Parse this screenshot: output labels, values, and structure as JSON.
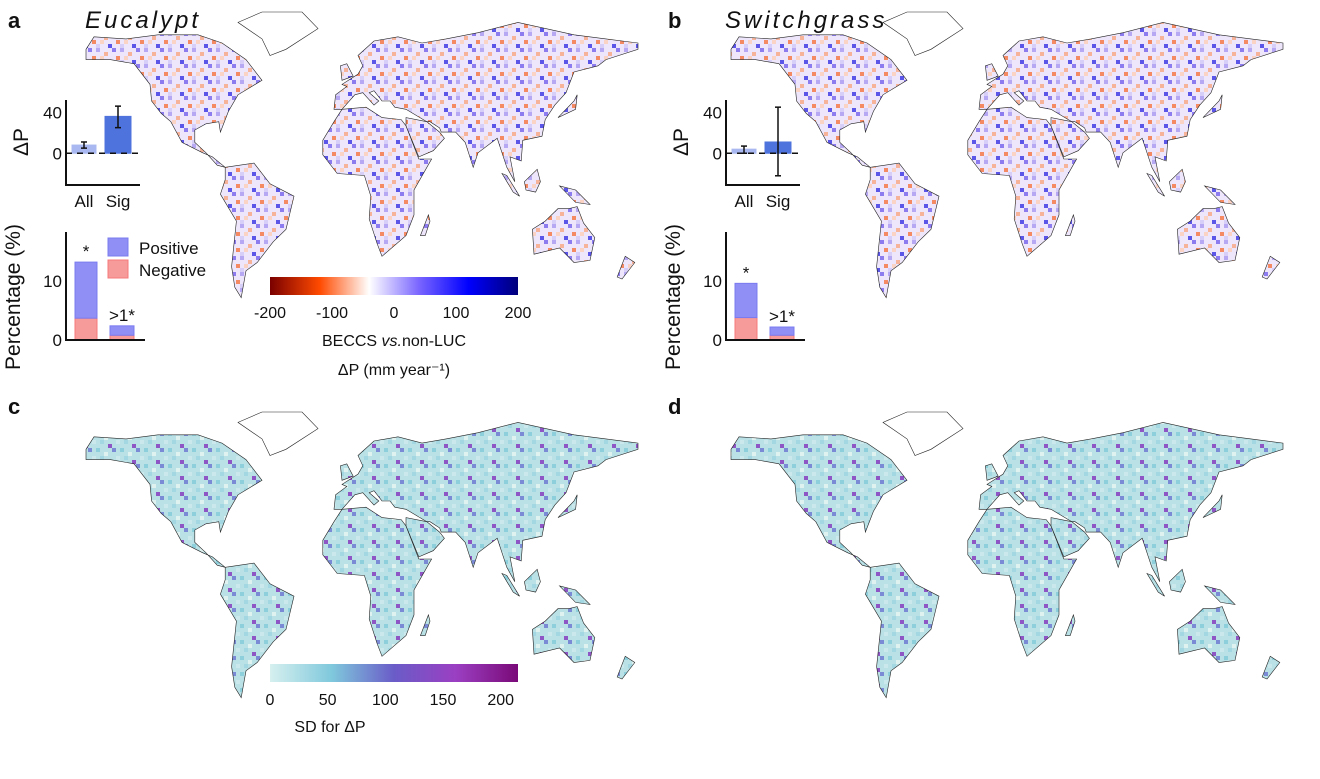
{
  "panels": [
    {
      "letter": "a",
      "title": "Eucalypt",
      "variable": "delta_p",
      "fill": "diverging"
    },
    {
      "letter": "b",
      "title": "Switchgrass",
      "variable": "delta_p",
      "fill": "diverging"
    },
    {
      "letter": "c",
      "title": "",
      "variable": "sd",
      "fill": "sd"
    },
    {
      "letter": "d",
      "title": "",
      "variable": "sd",
      "fill": "sd"
    }
  ],
  "chart_data": [
    {
      "panel": "a",
      "type": "bar",
      "ylabel": "ΔP",
      "categories": [
        "All",
        "Sig"
      ],
      "values": [
        8,
        36
      ],
      "error_low": [
        5,
        25
      ],
      "error_high": [
        11,
        46
      ],
      "yticks": [
        "0",
        "40"
      ],
      "ylim": [
        -31,
        52
      ],
      "colors": [
        "#a9b8f0",
        "#4f73dc"
      ]
    },
    {
      "panel": "a",
      "type": "bar",
      "stacked": true,
      "ylabel": "Percentage (%)",
      "categories": [
        "*",
        ">1*"
      ],
      "series": [
        {
          "name": "Positive",
          "values": [
            9.5,
            1.6
          ],
          "color": "#8f8ff5"
        },
        {
          "name": "Negative",
          "values": [
            3.7,
            0.8
          ],
          "color": "#f79a9a"
        }
      ],
      "yticks": [
        "0",
        "10"
      ],
      "ylim": [
        0,
        18.3
      ],
      "legend": "top-right"
    },
    {
      "panel": "b",
      "type": "bar",
      "ylabel": "ΔP",
      "categories": [
        "All",
        "Sig"
      ],
      "values": [
        4,
        11
      ],
      "error_low": [
        0,
        -22
      ],
      "error_high": [
        7,
        45
      ],
      "yticks": [
        "0",
        "40"
      ],
      "ylim": [
        -31,
        52
      ],
      "colors": [
        "#a9b8f0",
        "#4f73dc"
      ]
    },
    {
      "panel": "b",
      "type": "bar",
      "stacked": true,
      "ylabel": "Percentage (%)",
      "categories": [
        "*",
        ">1*"
      ],
      "series": [
        {
          "name": "Positive",
          "values": [
            5.8,
            1.4
          ],
          "color": "#8f8ff5"
        },
        {
          "name": "Negative",
          "values": [
            3.8,
            0.8
          ],
          "color": "#f79a9a"
        }
      ],
      "yticks": [
        "0",
        "10"
      ],
      "ylim": [
        0,
        18.3
      ]
    }
  ],
  "colorbars": {
    "delta_p": {
      "ticks": [
        "-200",
        "-100",
        "0",
        "100",
        "200"
      ],
      "range": [
        -200,
        200
      ],
      "label_main": "BECCS ",
      "label_italic": "vs.",
      "label_rest": "non-LUC",
      "unit": "ΔP (mm year⁻¹)",
      "colors": [
        "#7a0000",
        "#ff4a00",
        "#ffffff",
        "#7a66ff",
        "#0000ff",
        "#00007a"
      ]
    },
    "sd": {
      "ticks": [
        "0",
        "50",
        "100",
        "150",
        "200"
      ],
      "range": [
        0,
        215
      ],
      "label": "SD for ΔP",
      "colors": [
        "#d6f0ef",
        "#7fc8dc",
        "#6a5cc8",
        "#9b3fc2",
        "#7a0a78"
      ]
    }
  }
}
